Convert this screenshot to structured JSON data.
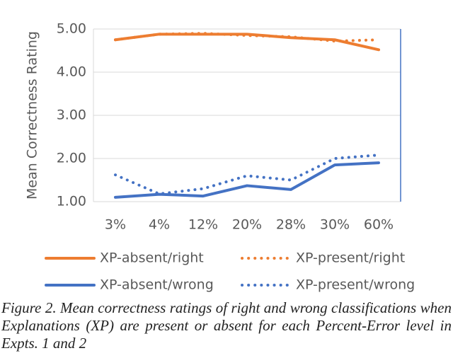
{
  "chart_data": {
    "type": "line",
    "y_label": "Mean Correctness Rating",
    "categories": [
      "3%",
      "4%",
      "12%",
      "20%",
      "28%",
      "30%",
      "60%"
    ],
    "series": [
      {
        "name": "XP-absent/right",
        "color": "#ed7d31",
        "dash": "solid",
        "values": [
          4.75,
          4.88,
          4.88,
          4.88,
          4.8,
          4.75,
          4.52
        ]
      },
      {
        "name": "XP-present/right",
        "color": "#ed7d31",
        "dash": "dotted",
        "values": [
          4.75,
          4.88,
          4.9,
          4.85,
          4.82,
          4.72,
          4.75
        ]
      },
      {
        "name": "XP-absent/wrong",
        "color": "#4472c4",
        "dash": "solid",
        "values": [
          1.1,
          1.17,
          1.13,
          1.37,
          1.28,
          1.85,
          1.9
        ]
      },
      {
        "name": "XP-present/wrong",
        "color": "#4472c4",
        "dash": "dotted",
        "values": [
          1.62,
          1.18,
          1.3,
          1.6,
          1.5,
          2.0,
          2.08
        ]
      }
    ],
    "ylim": [
      1,
      5
    ],
    "yticks": [
      {
        "value": 1,
        "label": "1.00"
      },
      {
        "value": 2,
        "label": "2.00"
      },
      {
        "value": 3,
        "label": "3.00"
      },
      {
        "value": 4,
        "label": "4.00"
      },
      {
        "value": 5,
        "label": "5.00"
      }
    ],
    "grid": true,
    "caption": "Figure 2. Mean correctness ratings of right and wrong classifications when Explanations (XP) are present or absent for each Percent-Error level in Expts. 1 and 2"
  }
}
